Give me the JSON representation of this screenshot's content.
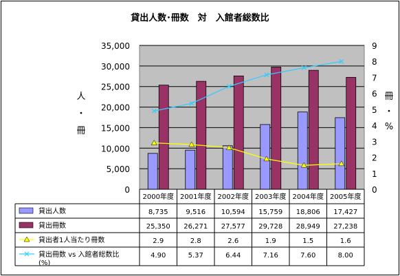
{
  "chart_data": {
    "type": "bar",
    "title": "貸出人数･冊数　対　入館者総数比",
    "categories": [
      "2000年度",
      "2001年度",
      "2002年度",
      "2003年度",
      "2004年度",
      "2005年度"
    ],
    "ylabel_left": [
      "人",
      "・",
      "冊"
    ],
    "ylabel_right": [
      "冊",
      "・",
      "%"
    ],
    "ylim_left": [
      0,
      35000
    ],
    "ylim_right": [
      0,
      9
    ],
    "yticks_left": [
      "0",
      "5,000",
      "10,000",
      "15,000",
      "20,000",
      "25,000",
      "30,000",
      "35,000"
    ],
    "yticks_right": [
      "0",
      "1",
      "2",
      "3",
      "4",
      "5",
      "6",
      "7",
      "8",
      "9"
    ],
    "grid": true,
    "legend": "data-table-left",
    "series": [
      {
        "name": "貸出人数",
        "kind": "bar",
        "axis": "left",
        "color": "#9999ff",
        "values": [
          8735,
          9516,
          10594,
          15759,
          18806,
          17427
        ],
        "labels": [
          "8,735",
          "9,516",
          "10,594",
          "15,759",
          "18,806",
          "17,427"
        ]
      },
      {
        "name": "貸出冊数",
        "kind": "bar",
        "axis": "left",
        "color": "#993366",
        "values": [
          25350,
          26271,
          27577,
          29728,
          28949,
          27238
        ],
        "labels": [
          "25,350",
          "26,271",
          "27,577",
          "29,728",
          "28,949",
          "27,238"
        ]
      },
      {
        "name": "貸出者1人当たり冊数",
        "kind": "line",
        "axis": "right",
        "color": "#ffff00",
        "marker": "triangle",
        "values": [
          2.9,
          2.8,
          2.6,
          1.9,
          1.5,
          1.6
        ],
        "labels": [
          "2.9",
          "2.8",
          "2.6",
          "1.9",
          "1.5",
          "1.6"
        ]
      },
      {
        "name": "貸出冊数 vs 入館者総数比\n(%)",
        "kind": "line",
        "axis": "right",
        "color": "#33ccff",
        "marker": "x",
        "values": [
          4.9,
          5.37,
          6.44,
          7.16,
          7.6,
          8.0
        ],
        "labels": [
          "4.90",
          "5.37",
          "6.44",
          "7.16",
          "7.60",
          "8.00"
        ]
      }
    ]
  },
  "colors": {
    "plot_bg": "#c0c0c0",
    "grid": "#000000",
    "bar_outline": "#000000"
  }
}
